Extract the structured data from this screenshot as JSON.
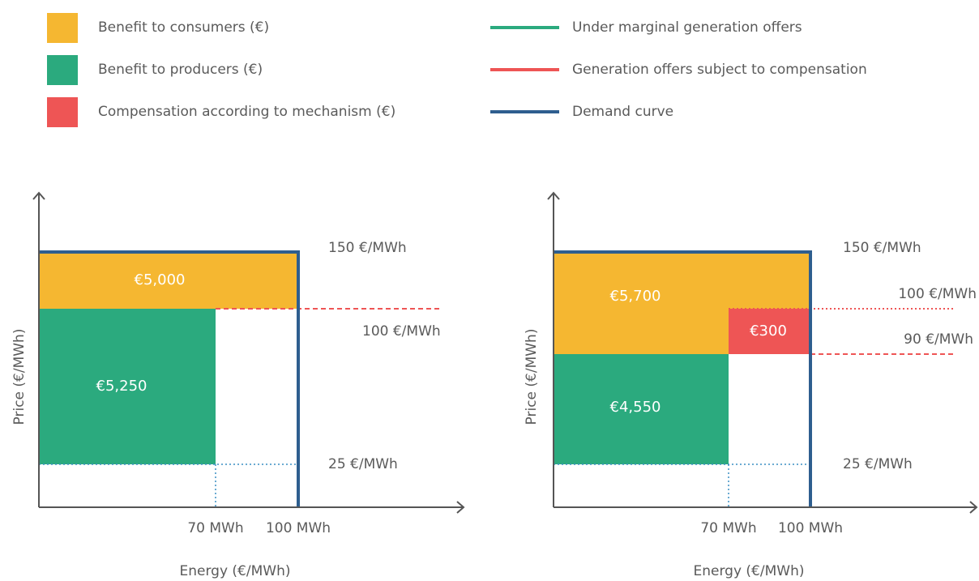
{
  "legend": {
    "items": [
      {
        "label": "Benefit to consumers (€)",
        "color": "#F5B731",
        "kind": "swatch"
      },
      {
        "label": "Benefit to producers (€)",
        "color": "#2BAA7E",
        "kind": "swatch"
      },
      {
        "label": "Compensation according to mechanism (€)",
        "color": "#EE5555",
        "kind": "swatch"
      },
      {
        "label": "Under marginal generation offers",
        "color": "#2BAA7E",
        "kind": "line"
      },
      {
        "label": "Generation offers subject to compensation",
        "color": "#EE5555",
        "kind": "line"
      },
      {
        "label": "Demand curve",
        "color": "#2E5E8F",
        "kind": "line"
      }
    ]
  },
  "chart_data": [
    {
      "type": "area",
      "xlabel": "Energy (€/MWh)",
      "ylabel": "Price (€/MWh)",
      "xlim": [
        0,
        200
      ],
      "ylim": [
        0,
        200
      ],
      "x_ticks": [
        {
          "value": 70,
          "label": "70 MWh"
        },
        {
          "value": 100,
          "label": "100 MWh"
        }
      ],
      "y_ticks": [
        {
          "value": 150,
          "label": "150 €/MWh"
        },
        {
          "value": 100,
          "label": "100 €/MWh"
        },
        {
          "value": 25,
          "label": "25 €/MWh"
        }
      ],
      "demand": {
        "price": 150,
        "quantity": 100
      },
      "regions": [
        {
          "name": "Benefit to consumers (€)",
          "color": "#F5B731",
          "x": [
            0,
            100
          ],
          "y": [
            100,
            150
          ],
          "value_label": "€5,000"
        },
        {
          "name": "Benefit to producers (€)",
          "color": "#2BAA7E",
          "x": [
            0,
            70
          ],
          "y": [
            25,
            100
          ],
          "value_label": "€5,250"
        }
      ],
      "offer_lines": [
        {
          "color": "#EE5555",
          "style": "dashed",
          "y": 100,
          "x_from": 70
        }
      ]
    },
    {
      "type": "area",
      "xlabel": "Energy (€/MWh)",
      "ylabel": "Price (€/MWh)",
      "xlim": [
        0,
        200
      ],
      "ylim": [
        0,
        200
      ],
      "x_ticks": [
        {
          "value": 70,
          "label": "70 MWh"
        },
        {
          "value": 100,
          "label": "100 MWh"
        }
      ],
      "y_ticks": [
        {
          "value": 150,
          "label": "150 €/MWh"
        },
        {
          "value": 100,
          "label": "100 €/MWh"
        },
        {
          "value": 90,
          "label": "90 €/MWh"
        },
        {
          "value": 25,
          "label": "25 €/MWh"
        }
      ],
      "demand": {
        "price": 150,
        "quantity": 100
      },
      "regions": [
        {
          "name": "Benefit to consumers (€)",
          "color": "#F5B731",
          "x": [
            0,
            100
          ],
          "y": [
            90,
            150
          ],
          "value_label": "€5,700"
        },
        {
          "name": "Compensation according to mechanism (€)",
          "color": "#EE5555",
          "x": [
            70,
            100
          ],
          "y": [
            90,
            100
          ],
          "value_label": "€300"
        },
        {
          "name": "Benefit to producers (€)",
          "color": "#2BAA7E",
          "x": [
            0,
            70
          ],
          "y": [
            25,
            90
          ],
          "value_label": "€4,550"
        }
      ],
      "offer_lines": [
        {
          "color": "#EE5555",
          "style": "dotted",
          "y": 100,
          "x_from": 70
        },
        {
          "color": "#EE5555",
          "style": "dashed",
          "y": 90,
          "x_from": 100
        }
      ]
    }
  ]
}
